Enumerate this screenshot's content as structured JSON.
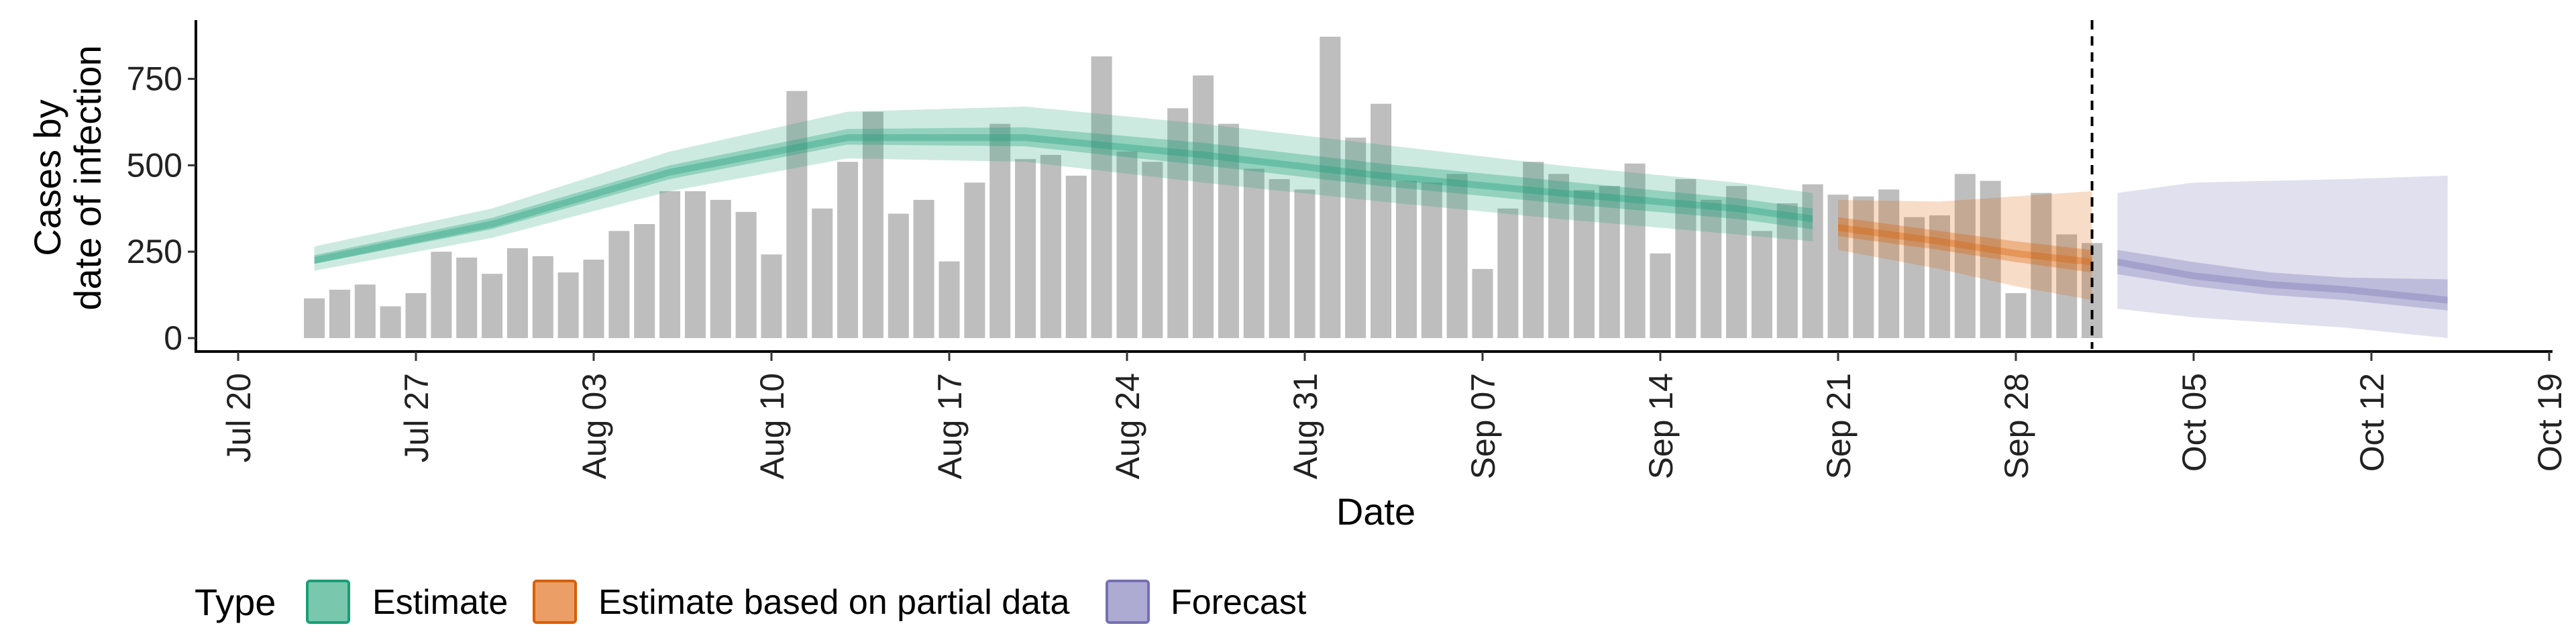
{
  "chart_data": {
    "type": "bar+ribbon",
    "xlabel": "Date",
    "ylabel_lines": [
      "Cases by",
      "date of infection"
    ],
    "yticks": [
      0,
      250,
      500,
      750
    ],
    "ylim": [
      -45,
      920
    ],
    "x_start": "2020-07-20",
    "x_end": "2020-10-19",
    "xticks": [
      "2020-07-20",
      "2020-07-27",
      "2020-08-03",
      "2020-08-10",
      "2020-08-17",
      "2020-08-24",
      "2020-08-31",
      "2020-09-07",
      "2020-09-14",
      "2020-09-21",
      "2020-09-28",
      "2020-10-05",
      "2020-10-12",
      "2020-10-19"
    ],
    "xtick_labels": [
      "Jul 20",
      "Jul 27",
      "Aug 03",
      "Aug 10",
      "Aug 17",
      "Aug 24",
      "Aug 31",
      "Sep 07",
      "Sep 14",
      "Sep 21",
      "Sep 28",
      "Oct 05",
      "Oct 12",
      "Oct 19"
    ],
    "vline_date": "2020-10-01",
    "bars": {
      "color": "#bebebe",
      "start_date": "2020-07-23",
      "values": [
        115,
        140,
        155,
        92,
        130,
        250,
        233,
        186,
        260,
        237,
        190,
        227,
        310,
        330,
        425,
        425,
        400,
        365,
        242,
        715,
        375,
        510,
        655,
        360,
        400,
        222,
        450,
        620,
        518,
        530,
        470,
        815,
        540,
        510,
        665,
        760,
        620,
        490,
        460,
        430,
        872,
        580,
        678,
        455,
        450,
        475,
        200,
        375,
        510,
        475,
        428,
        440,
        505,
        245,
        460,
        400,
        440,
        310,
        390,
        445,
        415,
        410,
        430,
        350,
        355,
        475,
        455,
        130,
        420,
        300,
        275
      ]
    },
    "estimate_band": {
      "name": "Estimate",
      "color": "#1b9e77",
      "knot_dates": [
        "2020-07-23",
        "2020-07-30",
        "2020-08-06",
        "2020-08-13",
        "2020-08-20",
        "2020-08-27",
        "2020-09-03",
        "2020-09-10",
        "2020-09-17",
        "2020-09-20"
      ],
      "median": [
        225,
        330,
        480,
        580,
        580,
        530,
        470,
        420,
        375,
        345
      ],
      "inner_lower": [
        215,
        315,
        460,
        560,
        555,
        500,
        440,
        390,
        345,
        315
      ],
      "inner_upper": [
        240,
        348,
        500,
        605,
        610,
        565,
        505,
        455,
        405,
        375
      ],
      "outer_lower": [
        195,
        290,
        425,
        520,
        510,
        450,
        395,
        345,
        300,
        280
      ],
      "outer_upper": [
        265,
        375,
        540,
        655,
        670,
        620,
        560,
        500,
        450,
        420
      ]
    },
    "partial_band": {
      "name": "Estimate based on partial data",
      "color": "#d95f02",
      "knot_dates": [
        "2020-09-21",
        "2020-09-25",
        "2020-09-28",
        "2020-10-01"
      ],
      "median": [
        320,
        280,
        245,
        220
      ],
      "inner_lower": [
        295,
        255,
        220,
        190
      ],
      "inner_upper": [
        350,
        310,
        280,
        255
      ],
      "outer_lower": [
        255,
        200,
        150,
        110
      ],
      "outer_upper": [
        400,
        395,
        410,
        425
      ]
    },
    "forecast_band": {
      "name": "Forecast",
      "color": "#7570b3",
      "knot_dates": [
        "2020-10-02",
        "2020-10-05",
        "2020-10-08",
        "2020-10-11",
        "2020-10-15"
      ],
      "median": [
        220,
        180,
        155,
        140,
        110
      ],
      "inner_lower": [
        185,
        150,
        125,
        110,
        80
      ],
      "inner_upper": [
        255,
        220,
        190,
        175,
        170
      ],
      "outer_lower": [
        85,
        60,
        45,
        30,
        0
      ],
      "outer_upper": [
        420,
        450,
        455,
        460,
        470
      ]
    },
    "legend": {
      "title": "Type",
      "items": [
        {
          "label": "Estimate",
          "fill": "#79c7ad",
          "stroke": "#1b9e77"
        },
        {
          "label": "Estimate based on partial data",
          "fill": "#eb9f66",
          "stroke": "#d95f02"
        },
        {
          "label": "Forecast",
          "fill": "#aeabd3",
          "stroke": "#7570b3"
        }
      ]
    }
  }
}
